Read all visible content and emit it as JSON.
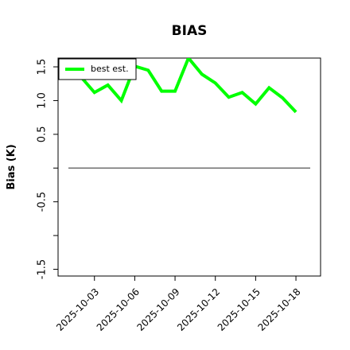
{
  "chart_data": {
    "type": "line",
    "title": "BIAS",
    "y_label": "Bias (K)",
    "x": [
      "2025-10-02",
      "2025-10-03",
      "2025-10-04",
      "2025-10-05",
      "2025-10-06",
      "2025-10-07",
      "2025-10-08",
      "2025-10-09",
      "2025-10-10",
      "2025-10-11",
      "2025-10-12",
      "2025-10-13",
      "2025-10-14",
      "2025-10-15",
      "2025-10-16",
      "2025-10-17",
      "2025-10-18"
    ],
    "series": [
      {
        "name": "best est.",
        "color": "#00ff00",
        "values": [
          1.35,
          1.12,
          1.23,
          1.0,
          1.51,
          1.45,
          1.14,
          1.14,
          1.63,
          1.39,
          1.26,
          1.05,
          1.12,
          0.95,
          1.19,
          1.04,
          0.83
        ]
      }
    ],
    "hline": 0,
    "xlim": [
      "2025-09-30T07:00",
      "2025-10-19T20:00"
    ],
    "xticks": [
      "2025-10-03",
      "2025-10-06",
      "2025-10-09",
      "2025-10-12",
      "2025-10-15",
      "2025-10-18"
    ],
    "ylim": [
      -1.6,
      1.63
    ],
    "yticks": [
      -1.5,
      {
        "value": -1.0,
        "label": null
      },
      -0.5,
      {
        "value": 0,
        "label": null
      },
      0.5,
      {
        "value": 1.0,
        "label": "1.0"
      },
      1.5
    ],
    "legend": "upper left"
  }
}
